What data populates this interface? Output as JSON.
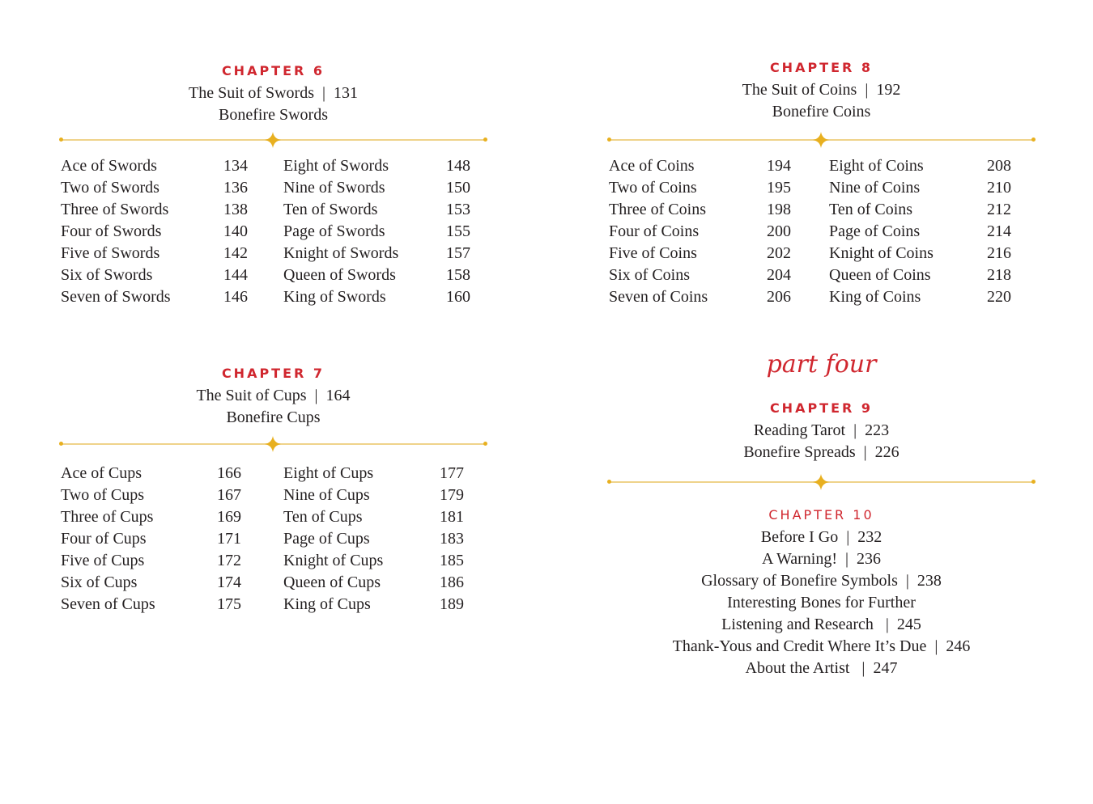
{
  "colors": {
    "accent_red": "#d0272f",
    "gold": "#e8b020",
    "rule": "#efd38a",
    "text": "#231f20"
  },
  "ch6": {
    "heading": "CHAPTER 6",
    "lines": [
      "The Suit of Swords  |  131",
      "Bonefire Swords"
    ],
    "col1": [
      [
        "Ace of Swords",
        "134"
      ],
      [
        "Two of Swords",
        "136"
      ],
      [
        "Three of Swords",
        "138"
      ],
      [
        "Four of Swords",
        "140"
      ],
      [
        "Five of Swords",
        "142"
      ],
      [
        "Six of Swords",
        "144"
      ],
      [
        "Seven of Swords",
        "146"
      ]
    ],
    "col2": [
      [
        "Eight of Swords",
        "148"
      ],
      [
        "Nine of Swords",
        "150"
      ],
      [
        "Ten of Swords",
        "153"
      ],
      [
        "Page of Swords",
        "155"
      ],
      [
        "Knight of Swords",
        "157"
      ],
      [
        "Queen of Swords",
        "158"
      ],
      [
        "King of Swords",
        "160"
      ]
    ]
  },
  "ch7": {
    "heading": "CHAPTER 7",
    "lines": [
      "The Suit of Cups  |  164",
      "Bonefire Cups"
    ],
    "col1": [
      [
        "Ace of Cups",
        "166"
      ],
      [
        "Two of Cups",
        "167"
      ],
      [
        "Three of Cups",
        "169"
      ],
      [
        "Four of Cups",
        "171"
      ],
      [
        "Five of Cups",
        "172"
      ],
      [
        "Six of Cups",
        "174"
      ],
      [
        "Seven of Cups",
        "175"
      ]
    ],
    "col2": [
      [
        "Eight of Cups",
        "177"
      ],
      [
        "Nine of Cups",
        "179"
      ],
      [
        "Ten of Cups",
        "181"
      ],
      [
        "Page of Cups",
        "183"
      ],
      [
        "Knight of Cups",
        "185"
      ],
      [
        "Queen of Cups",
        "186"
      ],
      [
        "King of Cups",
        "189"
      ]
    ]
  },
  "ch8": {
    "heading": "CHAPTER 8",
    "lines": [
      "The Suit of Coins  |  192",
      "Bonefire Coins"
    ],
    "col1": [
      [
        "Ace of Coins",
        "194"
      ],
      [
        "Two of Coins",
        "195"
      ],
      [
        "Three of Coins",
        "198"
      ],
      [
        "Four of Coins",
        "200"
      ],
      [
        "Five of Coins",
        "202"
      ],
      [
        "Six of Coins",
        "204"
      ],
      [
        "Seven of Coins",
        "206"
      ]
    ],
    "col2": [
      [
        "Eight of Coins",
        "208"
      ],
      [
        "Nine of Coins",
        "210"
      ],
      [
        "Ten of Coins",
        "212"
      ],
      [
        "Page of Coins",
        "214"
      ],
      [
        "Knight of Coins",
        "216"
      ],
      [
        "Queen of Coins",
        "218"
      ],
      [
        "King of Coins",
        "220"
      ]
    ]
  },
  "part": "part four",
  "ch9": {
    "heading": "CHAPTER 9",
    "lines": [
      "Reading Tarot  |  223",
      "Bonefire Spreads  |  226"
    ]
  },
  "ch10": {
    "heading": "CHAPTER 10",
    "lines": [
      "Before I Go  |  232",
      "A Warning!  |  236",
      "Glossary of Bonefire Symbols  |  238",
      "Interesting Bones for Further",
      "Listening and Research   |  245",
      "Thank-Yous and Credit Where It’s Due  |  246",
      "About the Artist   |  247"
    ]
  }
}
